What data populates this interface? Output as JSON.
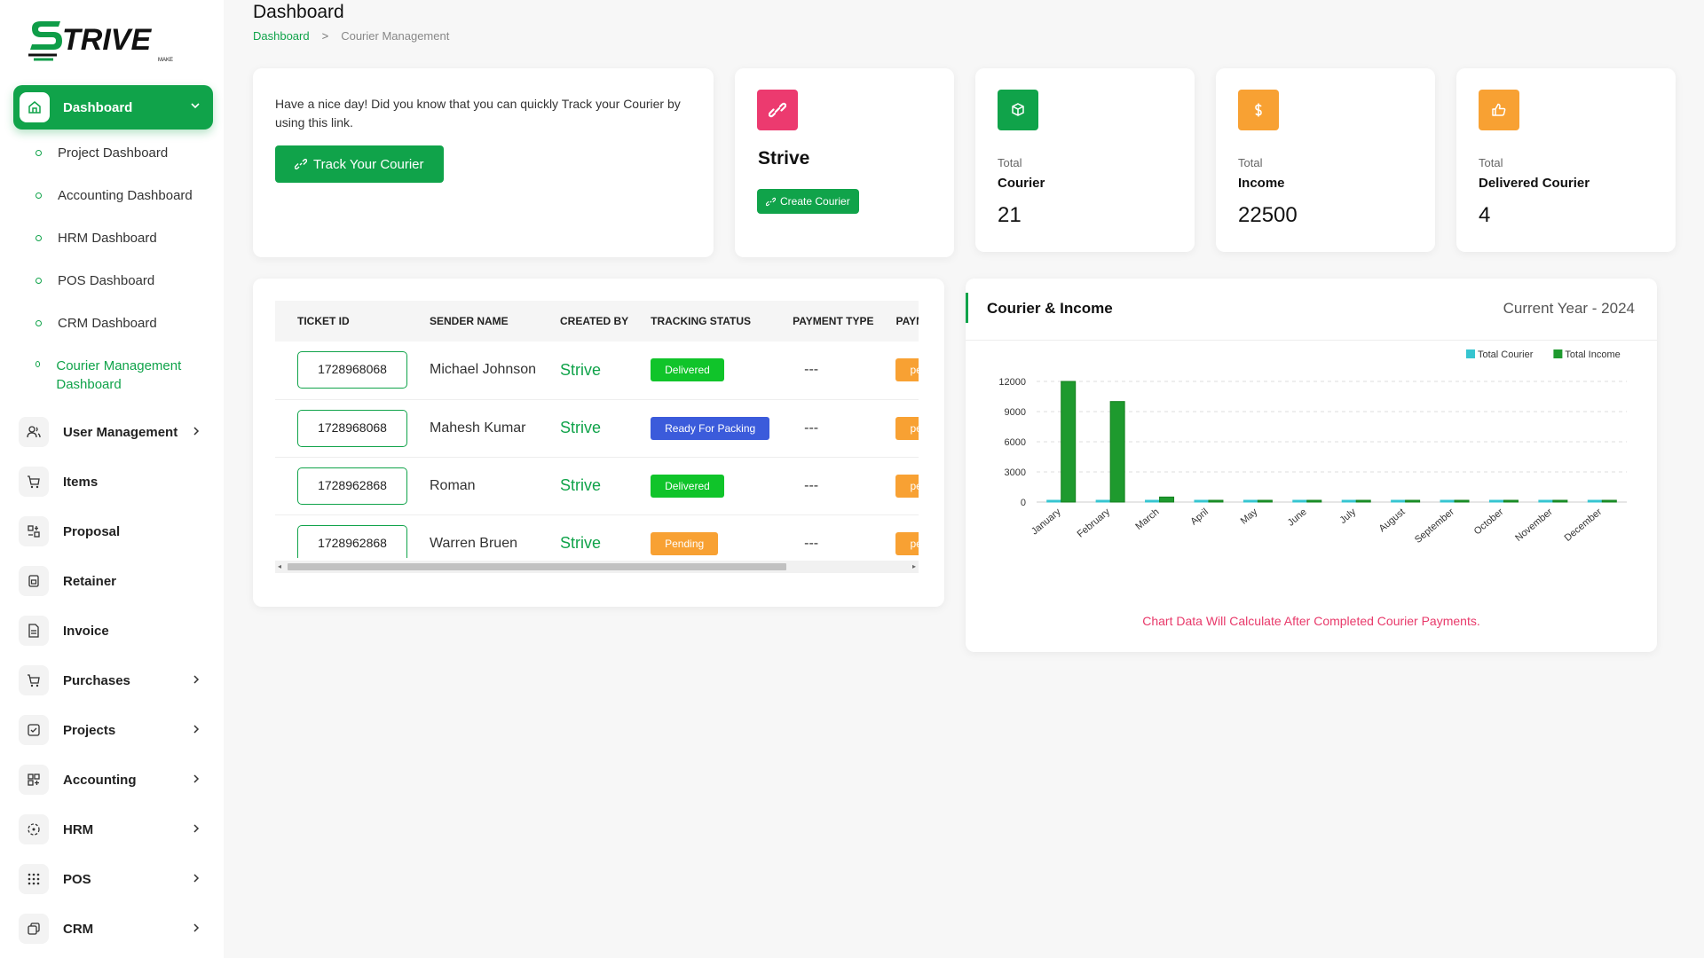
{
  "logo": {
    "text": "TRIVE",
    "sub": "MAKE"
  },
  "sidebar": {
    "active": {
      "label": "Dashboard"
    },
    "subitems": [
      {
        "label": "Project Dashboard"
      },
      {
        "label": "Accounting Dashboard"
      },
      {
        "label": "HRM Dashboard"
      },
      {
        "label": "POS Dashboard"
      },
      {
        "label": "CRM Dashboard"
      },
      {
        "label": "Courier Management Dashboard"
      }
    ],
    "items": [
      {
        "label": "User Management",
        "icon": "users-icon",
        "chevron": true
      },
      {
        "label": "Items",
        "icon": "cart-icon",
        "chevron": false
      },
      {
        "label": "Proposal",
        "icon": "proposal-icon",
        "chevron": false
      },
      {
        "label": "Retainer",
        "icon": "retainer-icon",
        "chevron": false
      },
      {
        "label": "Invoice",
        "icon": "invoice-icon",
        "chevron": false
      },
      {
        "label": "Purchases",
        "icon": "purchase-cart-icon",
        "chevron": true
      },
      {
        "label": "Projects",
        "icon": "checkbox-icon",
        "chevron": true
      },
      {
        "label": "Accounting",
        "icon": "grid-plus-icon",
        "chevron": true
      },
      {
        "label": "HRM",
        "icon": "hrm-icon",
        "chevron": true
      },
      {
        "label": "POS",
        "icon": "dots-grid-icon",
        "chevron": true
      },
      {
        "label": "CRM",
        "icon": "crm-icon",
        "chevron": true
      }
    ]
  },
  "header": {
    "title": "Dashboard",
    "breadcrumb": {
      "home": "Dashboard",
      "separator": ">",
      "current": "Courier Management"
    }
  },
  "welcome": {
    "text": "Have a nice day! Did you know that you can quickly Track your Courier by using this link.",
    "button": "Track Your Courier"
  },
  "strive_card": {
    "name": "Strive",
    "button": "Create Courier"
  },
  "stats": [
    {
      "label": "Total",
      "title": "Courier",
      "value": "21",
      "color": "#10a34a",
      "icon": "box-icon"
    },
    {
      "label": "Total",
      "title": "Income",
      "value": "22500",
      "color": "#f8a133",
      "icon": "dollar-icon"
    },
    {
      "label": "Total",
      "title": "Delivered Courier",
      "value": "4",
      "color": "#f8a133",
      "icon": "thumbs-up-icon"
    }
  ],
  "table": {
    "headers": [
      "TICKET ID",
      "SENDER NAME",
      "CREATED BY",
      "TRACKING STATUS",
      "PAYMENT TYPE",
      "PAYMENT STATUS"
    ],
    "rows": [
      {
        "ticket": "1728968068",
        "sender": "Michael Johnson",
        "created_by": "Strive",
        "status": "Delivered",
        "status_color": "#10c42a",
        "payment_type": "---",
        "payment_status": "pending"
      },
      {
        "ticket": "1728968068",
        "sender": "Mahesh Kumar",
        "created_by": "Strive",
        "status": "Ready For Packing",
        "status_color": "#3b5bdb",
        "payment_type": "---",
        "payment_status": "pending"
      },
      {
        "ticket": "1728962868",
        "sender": "Roman",
        "created_by": "Strive",
        "status": "Delivered",
        "status_color": "#10c42a",
        "payment_type": "---",
        "payment_status": "pending"
      },
      {
        "ticket": "1728962868",
        "sender": "Warren Bruen",
        "created_by": "Strive",
        "status": "Pending",
        "status_color": "#f8a133",
        "payment_type": "---",
        "payment_status": "pending"
      }
    ]
  },
  "chart_panel": {
    "title": "Courier & Income",
    "year": "Current Year - 2024",
    "note": "Chart Data Will Calculate After Completed Courier Payments."
  },
  "chart_data": {
    "type": "bar",
    "categories": [
      "January",
      "February",
      "March",
      "April",
      "May",
      "June",
      "July",
      "August",
      "September",
      "October",
      "November",
      "December"
    ],
    "series": [
      {
        "name": "Total Courier",
        "color": "#36c5d0",
        "values": [
          0,
          0,
          0,
          0,
          0,
          0,
          0,
          0,
          0,
          0,
          0,
          0
        ]
      },
      {
        "name": "Total Income",
        "color": "#1e9a2e",
        "values": [
          12000,
          10000,
          500,
          0,
          0,
          0,
          0,
          0,
          0,
          0,
          0,
          0
        ]
      }
    ],
    "yticks": [
      0,
      3000,
      6000,
      9000,
      12000
    ],
    "ylim": [
      0,
      12000
    ],
    "legend": "top-right",
    "grid": true
  }
}
